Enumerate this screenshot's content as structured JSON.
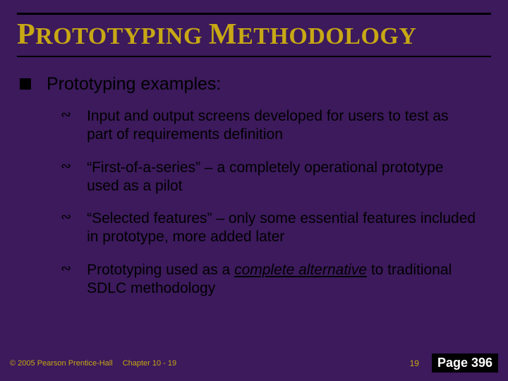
{
  "colors": {
    "background": "#3c1a5c",
    "title": "#c7a814",
    "body_text": "#000000",
    "footer_text": "#c7a814",
    "page_badge_bg": "#000000",
    "page_badge_fg": "#ffffff"
  },
  "title": {
    "text_html": "<span class='cap'>P</span>ROTOTYPING <span class='cap'>M</span>ETHODOLOGY",
    "fontsize_pt": 34
  },
  "level1": {
    "bullet_style": "black-square",
    "text": "Prototyping examples:",
    "fontsize_pt": 25
  },
  "level2": {
    "bullet_glyph": "∾",
    "fontsize_pt": 21,
    "items": [
      {
        "html": "Input and output screens developed for users to test as part of requirements definition"
      },
      {
        "html": "“First-of-a-series” – a completely operational prototype used as a pilot"
      },
      {
        "html": "“Selected features” – only some essential features included in prototype, more added later"
      },
      {
        "html": "Prototyping used as a <span class='u'>complete alternative</span> to traditional SDLC methodology"
      }
    ]
  },
  "footer": {
    "copyright": "© 2005  Pearson Prentice-Hall",
    "chapter": "Chapter 10 - 19",
    "slide_number": "19",
    "page_label": "Page 396"
  }
}
